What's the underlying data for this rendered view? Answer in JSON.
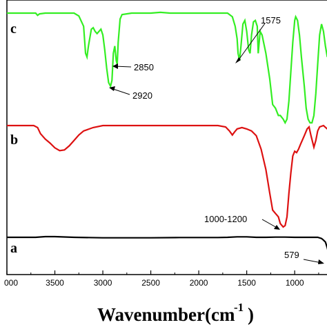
{
  "chart_data": {
    "type": "line",
    "xlabel_main": "Wavenumber(cm",
    "xlabel_sup": "-1",
    "xlabel_close": ")",
    "xlim": [
      4000,
      620
    ],
    "x_ticks": [
      "000",
      "3500",
      "3000",
      "2500",
      "2000",
      "1500",
      "1000"
    ],
    "x_tick_values": [
      4000,
      3500,
      3000,
      2500,
      2000,
      1500,
      1000
    ],
    "series": [
      {
        "name": "c",
        "color": "#33ee22",
        "points": [
          [
            4000,
            0.0
          ],
          [
            3700,
            0.0
          ],
          [
            3680,
            0.03
          ],
          [
            3660,
            0.01
          ],
          [
            3600,
            0.0
          ],
          [
            3500,
            0.0
          ],
          [
            3400,
            0.0
          ],
          [
            3300,
            0.0
          ],
          [
            3250,
            0.04
          ],
          [
            3200,
            0.18
          ],
          [
            3180,
            0.55
          ],
          [
            3165,
            0.6
          ],
          [
            3150,
            0.45
          ],
          [
            3120,
            0.22
          ],
          [
            3100,
            0.2
          ],
          [
            3080,
            0.25
          ],
          [
            3060,
            0.28
          ],
          [
            3040,
            0.25
          ],
          [
            3020,
            0.22
          ],
          [
            3000,
            0.3
          ],
          [
            2980,
            0.5
          ],
          [
            2960,
            0.75
          ],
          [
            2940,
            0.95
          ],
          [
            2920,
            1.0
          ],
          [
            2905,
            0.92
          ],
          [
            2890,
            0.55
          ],
          [
            2875,
            0.45
          ],
          [
            2860,
            0.65
          ],
          [
            2850,
            0.7
          ],
          [
            2840,
            0.4
          ],
          [
            2820,
            0.08
          ],
          [
            2800,
            0.02
          ],
          [
            2700,
            0.0
          ],
          [
            2500,
            0.0
          ],
          [
            2400,
            -0.01
          ],
          [
            2300,
            0.0
          ],
          [
            2000,
            0.0
          ],
          [
            1800,
            0.0
          ],
          [
            1700,
            0.0
          ],
          [
            1650,
            0.05
          ],
          [
            1620,
            0.18
          ],
          [
            1600,
            0.35
          ],
          [
            1590,
            0.55
          ],
          [
            1575,
            0.65
          ],
          [
            1560,
            0.45
          ],
          [
            1540,
            0.15
          ],
          [
            1520,
            0.1
          ],
          [
            1500,
            0.25
          ],
          [
            1480,
            0.5
          ],
          [
            1465,
            0.55
          ],
          [
            1450,
            0.3
          ],
          [
            1430,
            0.12
          ],
          [
            1410,
            0.1
          ],
          [
            1390,
            0.18
          ],
          [
            1380,
            0.55
          ],
          [
            1360,
            0.25
          ],
          [
            1340,
            0.3
          ],
          [
            1300,
            0.55
          ],
          [
            1260,
            0.9
          ],
          [
            1230,
            1.25
          ],
          [
            1200,
            1.3
          ],
          [
            1170,
            1.4
          ],
          [
            1150,
            1.4
          ],
          [
            1120,
            1.45
          ],
          [
            1100,
            1.5
          ],
          [
            1080,
            1.45
          ],
          [
            1060,
            1.2
          ],
          [
            1040,
            0.8
          ],
          [
            1020,
            0.4
          ],
          [
            1000,
            0.1
          ],
          [
            990,
            0.05
          ],
          [
            970,
            0.1
          ],
          [
            950,
            0.3
          ],
          [
            930,
            0.6
          ],
          [
            900,
            1.0
          ],
          [
            880,
            1.3
          ],
          [
            860,
            1.45
          ],
          [
            840,
            1.5
          ],
          [
            820,
            1.5
          ],
          [
            800,
            1.4
          ],
          [
            780,
            1.1
          ],
          [
            760,
            0.7
          ],
          [
            740,
            0.3
          ],
          [
            720,
            0.15
          ],
          [
            700,
            0.25
          ],
          [
            680,
            0.45
          ],
          [
            660,
            0.6
          ],
          [
            640,
            0.4
          ],
          [
            620,
            0.2
          ]
        ],
        "offset": 0,
        "scale": 1
      },
      {
        "name": "b",
        "color": "#dd1111",
        "points": [
          [
            4000,
            0.0
          ],
          [
            3800,
            0.0
          ],
          [
            3720,
            0.0
          ],
          [
            3680,
            0.03
          ],
          [
            3650,
            0.12
          ],
          [
            3600,
            0.2
          ],
          [
            3550,
            0.26
          ],
          [
            3500,
            0.33
          ],
          [
            3450,
            0.37
          ],
          [
            3400,
            0.36
          ],
          [
            3350,
            0.3
          ],
          [
            3300,
            0.22
          ],
          [
            3250,
            0.14
          ],
          [
            3200,
            0.08
          ],
          [
            3100,
            0.03
          ],
          [
            3000,
            0.0
          ],
          [
            2900,
            0.0
          ],
          [
            2800,
            0.0
          ],
          [
            2000,
            0.0
          ],
          [
            1800,
            0.0
          ],
          [
            1720,
            0.02
          ],
          [
            1680,
            0.08
          ],
          [
            1650,
            0.14
          ],
          [
            1630,
            0.1
          ],
          [
            1600,
            0.05
          ],
          [
            1550,
            0.03
          ],
          [
            1500,
            0.05
          ],
          [
            1450,
            0.08
          ],
          [
            1400,
            0.15
          ],
          [
            1350,
            0.35
          ],
          [
            1300,
            0.65
          ],
          [
            1260,
            1.0
          ],
          [
            1230,
            1.25
          ],
          [
            1200,
            1.3
          ],
          [
            1170,
            1.35
          ],
          [
            1150,
            1.45
          ],
          [
            1120,
            1.5
          ],
          [
            1100,
            1.48
          ],
          [
            1080,
            1.35
          ],
          [
            1060,
            1.0
          ],
          [
            1040,
            0.7
          ],
          [
            1020,
            0.45
          ],
          [
            1000,
            0.38
          ],
          [
            980,
            0.4
          ],
          [
            960,
            0.35
          ],
          [
            940,
            0.28
          ],
          [
            900,
            0.15
          ],
          [
            870,
            0.05
          ],
          [
            850,
            0.02
          ],
          [
            830,
            0.15
          ],
          [
            800,
            0.32
          ],
          [
            780,
            0.22
          ],
          [
            760,
            0.08
          ],
          [
            740,
            0.02
          ],
          [
            700,
            0.0
          ],
          [
            660,
            0.05
          ],
          [
            640,
            0.04
          ],
          [
            620,
            0.03
          ]
        ],
        "offset": 0,
        "scale": 1
      },
      {
        "name": "a",
        "color": "#000000",
        "points": [
          [
            4000,
            0.0
          ],
          [
            3700,
            0.0
          ],
          [
            3600,
            -0.03
          ],
          [
            3500,
            -0.03
          ],
          [
            3300,
            0.0
          ],
          [
            3000,
            0.02
          ],
          [
            2800,
            0.02
          ],
          [
            2500,
            0.02
          ],
          [
            2200,
            0.01
          ],
          [
            2000,
            0.01
          ],
          [
            1800,
            0.01
          ],
          [
            1700,
            0.0
          ],
          [
            1600,
            -0.02
          ],
          [
            1500,
            -0.02
          ],
          [
            1400,
            0.0
          ],
          [
            1300,
            0.0
          ],
          [
            1200,
            -0.01
          ],
          [
            1100,
            -0.01
          ],
          [
            1000,
            0.0
          ],
          [
            900,
            0.0
          ],
          [
            800,
            0.0
          ],
          [
            760,
            0.0
          ],
          [
            720,
            0.05
          ],
          [
            700,
            0.12
          ],
          [
            680,
            0.2
          ],
          [
            660,
            0.45
          ],
          [
            640,
            0.8
          ],
          [
            620,
            1.0
          ]
        ],
        "offset": 0,
        "scale": 1
      }
    ],
    "curve_labels": [
      "a",
      "b",
      "c"
    ],
    "annotations": [
      {
        "text": "1575",
        "x": 1575
      },
      {
        "text": "2850",
        "x": 2850
      },
      {
        "text": "2920",
        "x": 2920
      },
      {
        "text": "1000-1200",
        "x": 1100
      },
      {
        "text": "579",
        "x": 620
      }
    ]
  }
}
